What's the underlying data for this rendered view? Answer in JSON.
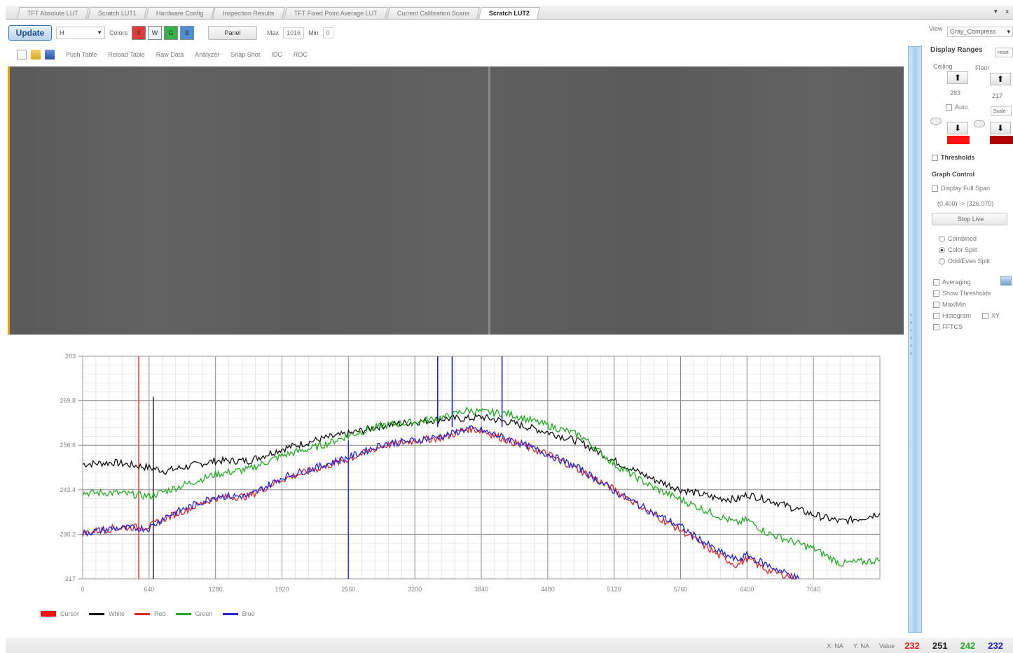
{
  "tabs": [
    {
      "label": "TFT Absolute LUT"
    },
    {
      "label": "Scratch LUT1"
    },
    {
      "label": "Hardware Config"
    },
    {
      "label": "Inspection Results"
    },
    {
      "label": "TFT Fixed Point Average LUT"
    },
    {
      "label": "Current Calibration Scans"
    },
    {
      "label": "Scratch LUT2"
    }
  ],
  "active_tab": 6,
  "tab_scroll": {
    "down": "▾",
    "close": "x"
  },
  "toolbar": {
    "update_label": "Update",
    "select_value": "H",
    "colors_label": "Colors",
    "color_buttons": [
      {
        "label": "X",
        "color": "#e23b3b"
      },
      {
        "label": "W",
        "color": "#eef3f7"
      },
      {
        "label": "G",
        "color": "#36b24a"
      },
      {
        "label": "B",
        "color": "#4e8fd6"
      }
    ],
    "panel_label": "Panel",
    "max_label": "Max",
    "max_value": "1016",
    "min_label": "Min",
    "min_value": "0"
  },
  "toolbar2": {
    "items": [
      "Push Table",
      "Reload Table",
      "Raw Data",
      "Analyzer",
      "Snap Shot",
      "IDC",
      "ROC"
    ]
  },
  "right_panel": {
    "view_label": "View",
    "view_value": "Gray_Compress",
    "display_ranges": "Display Ranges",
    "reset_label": "reset",
    "ceiling_label": "Ceiling",
    "floor_label": "Floor",
    "ceiling_value": "283",
    "floor_value": "217",
    "auto_label": "Auto",
    "scale_label": "Scale",
    "ceiling_swatch": "#ff1010",
    "floor_swatch": "#b00000",
    "thresholds_label": "Thresholds",
    "graph_control": "Graph Control",
    "display_full_span": "Display Full Span",
    "span_value": "(0.400) -> (326.070)",
    "stop_live": "Stop Live",
    "radio_combined": "Combined",
    "radio_color_split": "Color Split",
    "radio_odd_even": "Odd/Even Split",
    "averaging": "Averaging",
    "show_thresholds": "Show Thresholds",
    "max_min": "Max/Min",
    "histogram": "Histogram",
    "xy_label": "XY",
    "fftcs": "FFTCS"
  },
  "legend": [
    {
      "name": "Cursor",
      "color": "#ee1111"
    },
    {
      "name": "White",
      "color": "#111111"
    },
    {
      "name": "Red",
      "color": "#dd2222"
    },
    {
      "name": "Green",
      "color": "#22aa22"
    },
    {
      "name": "Blue",
      "color": "#2222dd"
    }
  ],
  "status": {
    "x_label": "X: NA",
    "y_label": "Y: NA",
    "value_label": "Value",
    "values": [
      {
        "v": "232",
        "color": "#ee2222"
      },
      {
        "v": "251",
        "color": "#222222"
      },
      {
        "v": "242",
        "color": "#22aa22"
      },
      {
        "v": "232",
        "color": "#2222cc"
      }
    ]
  },
  "chart_data": {
    "type": "line",
    "xlabel": "",
    "ylabel": "",
    "xlim": [
      0,
      7680
    ],
    "ylim": [
      217,
      283
    ],
    "xticks": [
      0,
      640,
      1280,
      1920,
      2560,
      3200,
      3840,
      4480,
      5120,
      5760,
      6400,
      7040
    ],
    "yticks": [
      217,
      230.2,
      243.4,
      256.6,
      269.8,
      283
    ],
    "ytick_labels": [
      "217",
      "230.2",
      "243.4",
      "256.6",
      "269.8",
      "283"
    ],
    "grid": true,
    "legend_position": "bottom-left",
    "cursor_lines": [
      {
        "x": 540,
        "color": "#ff3333"
      },
      {
        "x": 680,
        "color": "#222222",
        "y_top": 271
      }
    ],
    "marker_lines": [
      {
        "x": 2560,
        "color": "#3333cc"
      },
      {
        "x": 3420,
        "color": "#2222dd"
      },
      {
        "x": 3560,
        "color": "#2222dd"
      },
      {
        "x": 4040,
        "color": "#2222dd"
      }
    ],
    "series": [
      {
        "name": "White",
        "color": "#111111",
        "x": [
          0,
          300,
          640,
          800,
          1280,
          1600,
          1920,
          2300,
          2560,
          2900,
          3200,
          3500,
          3700,
          3840,
          4100,
          4480,
          4800,
          5120,
          5500,
          5760,
          6100,
          6300,
          6400,
          6600,
          7040,
          7300,
          7500,
          7680
        ],
        "y": [
          251,
          251.5,
          250,
          249,
          252,
          252,
          255.5,
          258.5,
          260,
          262.5,
          263.5,
          264.5,
          264.5,
          265,
          263.5,
          260.5,
          257.5,
          252,
          246.5,
          243.5,
          241,
          240.5,
          242,
          240.5,
          236,
          234,
          235,
          236.5
        ]
      },
      {
        "name": "Green",
        "color": "#22aa22",
        "x": [
          0,
          300,
          640,
          800,
          1280,
          1600,
          1920,
          2300,
          2560,
          2900,
          3200,
          3500,
          3700,
          3840,
          4100,
          4480,
          4800,
          5120,
          5500,
          5760,
          6100,
          6300,
          6400,
          6600,
          7040,
          7300,
          7500,
          7680
        ],
        "y": [
          242.5,
          242.5,
          241.5,
          243,
          248,
          249.5,
          253.5,
          256.5,
          259.5,
          262.5,
          263.5,
          265,
          267,
          266.5,
          266,
          262.5,
          259.5,
          251,
          244,
          240.5,
          236,
          233.5,
          234.5,
          230.5,
          226,
          221.5,
          222,
          222.5
        ]
      },
      {
        "name": "Red",
        "color": "#dd2222",
        "x": [
          0,
          300,
          640,
          800,
          1280,
          1600,
          1920,
          2300,
          2560,
          2900,
          3200,
          3500,
          3700,
          3840,
          4100,
          4480,
          4800,
          5120,
          5500,
          5760,
          6100,
          6300,
          6400,
          6600,
          6900
        ],
        "y": [
          230.5,
          232,
          232.5,
          235,
          241,
          241.5,
          246.5,
          250,
          252.5,
          256.5,
          258,
          259,
          261.5,
          261,
          258,
          254,
          249,
          243.5,
          236,
          231.5,
          224.5,
          221,
          223,
          219.5,
          217
        ]
      },
      {
        "name": "Blue",
        "color": "#2222dd",
        "x": [
          0,
          300,
          640,
          800,
          1280,
          1600,
          1920,
          2300,
          2560,
          2900,
          3200,
          3500,
          3700,
          3840,
          4100,
          4480,
          4800,
          5120,
          5500,
          5760,
          6100,
          6300,
          6400,
          6600,
          6900
        ],
        "y": [
          230.5,
          232,
          232,
          235.5,
          241.5,
          241.5,
          247,
          250.5,
          253,
          257,
          258,
          259.5,
          261.5,
          261,
          258.5,
          254,
          249.5,
          243,
          236.5,
          232.5,
          225.5,
          222.5,
          224,
          221,
          217
        ]
      }
    ]
  }
}
